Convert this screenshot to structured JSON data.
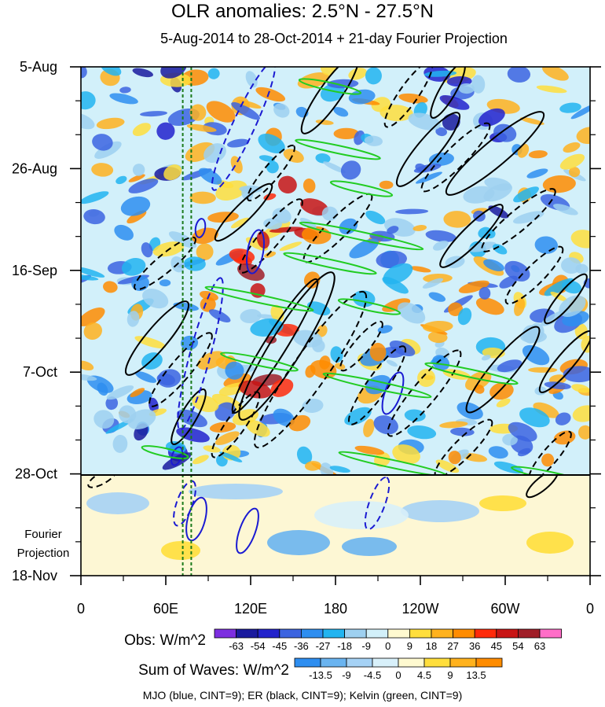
{
  "title": "OLR anomalies: 2.5°N - 27.5°N",
  "subtitle": "5-Aug-2014 to 28-Oct-2014 + 21-day Fourier Projection",
  "projection_label": [
    "Fourier",
    "Projection"
  ],
  "caption": "MJO (blue, CINT=9); ER (black, CINT=9); Kelvin (green, CINT=9)",
  "chart_data": {
    "type": "heatmap",
    "title": "OLR anomalies: 2.5°N - 27.5°N",
    "subtitle": "5-Aug-2014 to 28-Oct-2014 + 21-day Fourier Projection",
    "y_ticks": [
      "5-Aug",
      "26-Aug",
      "16-Sep",
      "7-Oct",
      "28-Oct",
      "18-Nov"
    ],
    "x_ticks": [
      "0",
      "60E",
      "120E",
      "180",
      "120W",
      "60W",
      "0"
    ],
    "x_range_deg_east": [
      0,
      360
    ],
    "time_range": [
      "5-Aug-2014",
      "18-Nov-2014"
    ],
    "observation_end": "28-Oct",
    "obs_colorbar": {
      "label": "Obs: W/m^2",
      "levels": [
        "-63",
        "-54",
        "-45",
        "-36",
        "-27",
        "-18",
        "-9",
        "0",
        "9",
        "18",
        "27",
        "36",
        "45",
        "54",
        "63"
      ],
      "colors": [
        "#7d2ee0",
        "#1a1a9e",
        "#2222cc",
        "#3c64e0",
        "#2e8ef0",
        "#22b4f0",
        "#9ed0f0",
        "#d2f0fa",
        "#fffad0",
        "#ffde3c",
        "#ffb21e",
        "#ff8c00",
        "#ff2a0a",
        "#c81414",
        "#a01e28",
        "#ff6ec8"
      ]
    },
    "waves_colorbar": {
      "label": "Sum of Waves: W/m^2",
      "levels": [
        "-13.5",
        "-9",
        "-4.5",
        "0",
        "4.5",
        "9",
        "13.5"
      ],
      "colors": [
        "#2e8ef0",
        "#6ab4f0",
        "#a6d2f5",
        "#d8f0fa",
        "#fffad0",
        "#ffde3c",
        "#ffb21e",
        "#ff8c00"
      ]
    },
    "contours": [
      {
        "name": "MJO",
        "color": "#1a1ad2",
        "cint": 9
      },
      {
        "name": "ER",
        "color": "#000000",
        "cint": 9
      },
      {
        "name": "Kelvin",
        "color": "#22cc22",
        "cint": 9
      }
    ],
    "reference_lines_deg_east": [
      72,
      78
    ]
  }
}
